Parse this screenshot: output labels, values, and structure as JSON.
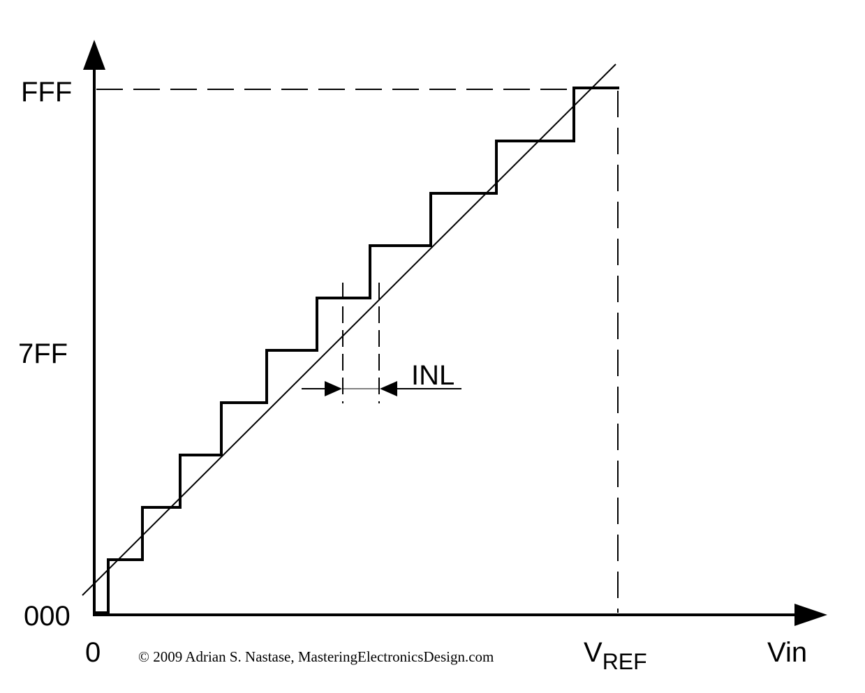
{
  "labels": {
    "y_top": "FFF",
    "y_mid": "7FF",
    "y_bottom": "000",
    "x_origin": "0",
    "x_ref_main": "V",
    "x_ref_sub": "REF",
    "x_axis": "Vin",
    "inl": "INL",
    "copyright": "© 2009 Adrian S. Nastase, MasteringElectronicsDesign.com"
  },
  "colors": {
    "stroke": "#000000",
    "background": "#ffffff"
  }
}
